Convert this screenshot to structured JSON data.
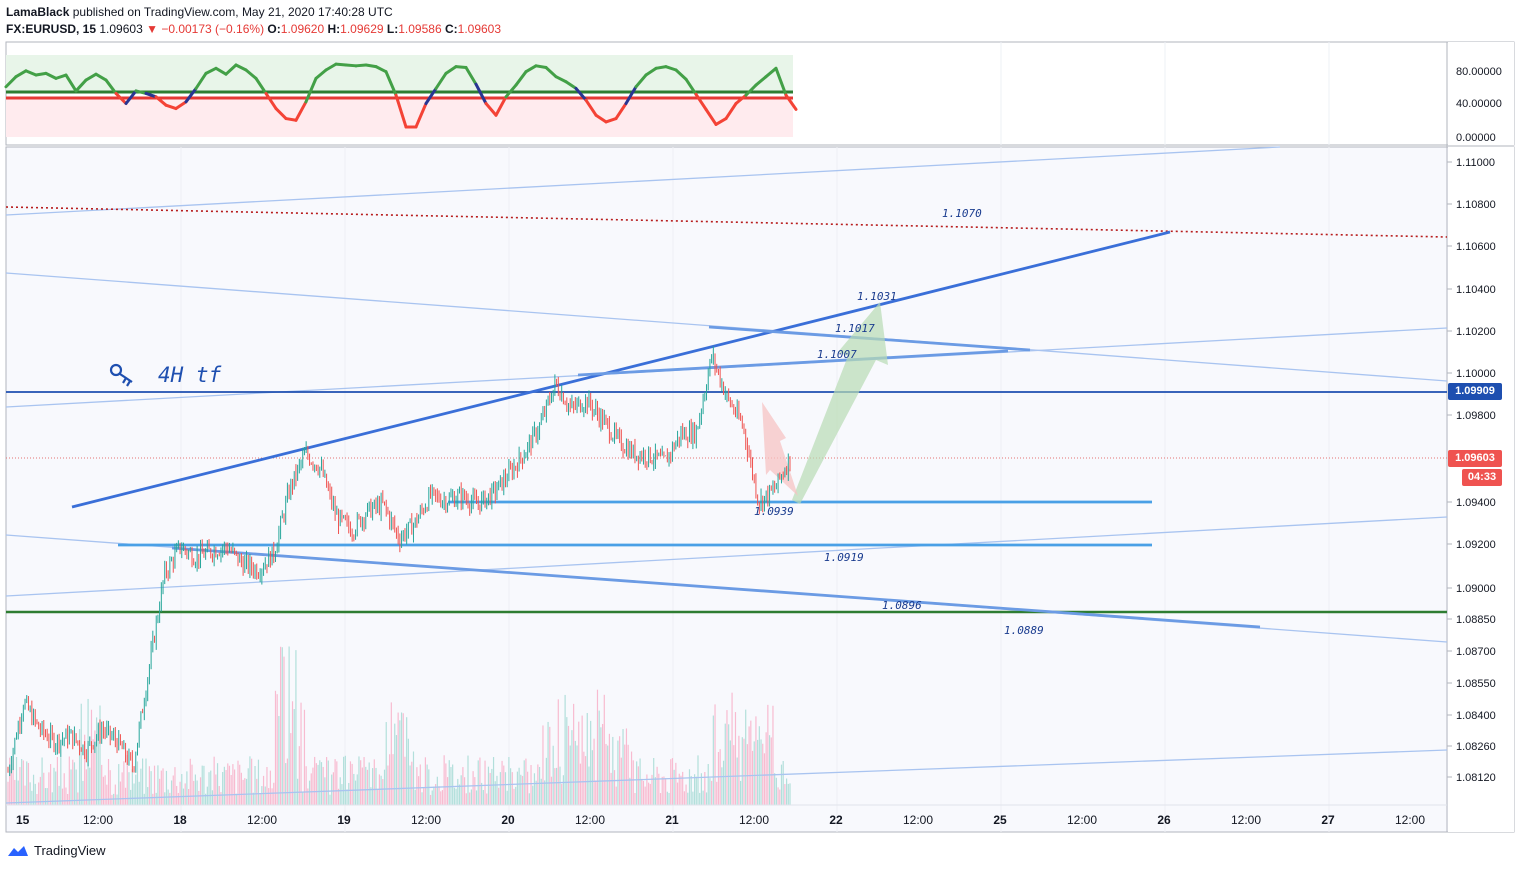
{
  "header": {
    "publisher": "LamaBlack",
    "published_text": "published on TradingView.com, May 21, 2020 17:40:28 UTC",
    "symbol": "FX:EURUSD, 15",
    "last": "1.09603",
    "change": "▼ −0.00173 (−0.16%)",
    "o_label": "O:",
    "o_value": "1.09620",
    "h_label": "H:",
    "h_value": "1.09629",
    "l_label": "L:",
    "l_value": "1.09586",
    "c_label": "C:",
    "c_value": "1.09603"
  },
  "footer": {
    "brand": "TradingView",
    "logo_icon": "tradingview-logo-icon"
  },
  "colors": {
    "up": "#26a69a",
    "down": "#ef5350",
    "trend": "#3a6fd8",
    "light_trend": "#a9c4f0",
    "support": "#4aa0e6",
    "resistance_green": "#2e7d32",
    "dotted_red": "#b71c1c",
    "osc_green": "#43a047",
    "osc_red": "#f44336",
    "osc_zone_green": "#e8f5e9",
    "osc_zone_red": "#ffebee"
  },
  "annotation": {
    "text": "4H tf",
    "icon": "key-icon"
  },
  "price_tags": {
    "level": "1.09909",
    "current": "1.09603",
    "countdown": "04:33"
  },
  "chart_data": [
    {
      "type": "line",
      "name": "oscillator",
      "yaxis_ticks": [
        "80.00000",
        "40.00000",
        "0.00000"
      ],
      "ylim": [
        -5,
        100
      ],
      "levels": [
        {
          "value": 52,
          "color": "#2e7d32"
        },
        {
          "value": 46,
          "color": "#e53935"
        }
      ],
      "x": [
        0,
        10,
        20,
        30,
        40,
        50,
        60,
        70,
        80,
        90,
        100,
        110,
        120,
        130,
        140,
        150,
        160,
        170,
        180,
        190,
        200,
        210,
        220,
        230,
        240,
        250,
        260,
        270,
        280,
        290,
        300,
        310,
        320,
        330,
        340,
        350,
        360,
        370,
        380,
        390,
        400,
        410,
        420,
        430,
        440,
        450,
        460,
        470,
        480,
        490,
        500,
        510,
        520,
        530,
        540,
        550,
        560,
        570,
        580,
        590,
        600,
        610,
        620,
        630,
        640,
        650,
        660,
        670,
        680,
        690,
        700,
        710,
        720,
        730,
        740,
        750,
        760,
        770,
        780,
        790
      ],
      "values": [
        60,
        72,
        79,
        74,
        76,
        70,
        74,
        55,
        68,
        75,
        68,
        52,
        40,
        55,
        52,
        48,
        38,
        34,
        42,
        58,
        76,
        82,
        75,
        86,
        80,
        70,
        52,
        34,
        22,
        20,
        42,
        70,
        80,
        87,
        86,
        85,
        86,
        84,
        78,
        50,
        12,
        12,
        40,
        58,
        76,
        84,
        83,
        63,
        40,
        26,
        48,
        62,
        78,
        85,
        83,
        72,
        66,
        58,
        44,
        26,
        18,
        22,
        40,
        60,
        74,
        82,
        84,
        80,
        69,
        51,
        33,
        15,
        22,
        40,
        50,
        62,
        72,
        82,
        50,
        33
      ]
    },
    {
      "type": "table",
      "name": "price",
      "yaxis_ticks": [
        "1.11000",
        "1.10800",
        "1.10600",
        "1.10400",
        "1.10200",
        "1.10000",
        "1.09800",
        "1.09400",
        "1.09200",
        "1.09000",
        "1.08850",
        "1.08700",
        "1.08550",
        "1.08400",
        "1.08260",
        "1.08120"
      ],
      "xaxis_ticks": [
        "15",
        "12:00",
        "18",
        "12:00",
        "19",
        "12:00",
        "20",
        "12:00",
        "21",
        "12:00",
        "22",
        "12:00",
        "25",
        "12:00",
        "26",
        "12:00",
        "27",
        "12:00"
      ],
      "level_labels": [
        "1.1070",
        "1.1031",
        "1.1017",
        "1.1007",
        "1.0939",
        "1.0919",
        "1.0896",
        "1.0889"
      ],
      "price_path": [
        1.0812,
        1.0845,
        1.0832,
        1.0826,
        1.0829,
        1.0822,
        1.0832,
        1.0826,
        1.0814,
        1.086,
        1.0905,
        1.0918,
        1.0913,
        1.0916,
        1.0918,
        1.091,
        1.0907,
        1.0915,
        1.0945,
        1.0962,
        1.0955,
        1.0932,
        1.0926,
        1.0935,
        1.0938,
        1.0922,
        1.0929,
        1.0942,
        1.094,
        1.0942,
        1.0938,
        1.0943,
        1.0952,
        1.0962,
        1.0975,
        1.0995,
        1.0983,
        1.0987,
        1.0978,
        1.0968,
        1.0962,
        1.0961,
        1.0958,
        1.0971,
        1.0972,
        1.1008,
        1.0988,
        1.0975,
        1.0939,
        1.0945,
        1.096
      ]
    }
  ]
}
